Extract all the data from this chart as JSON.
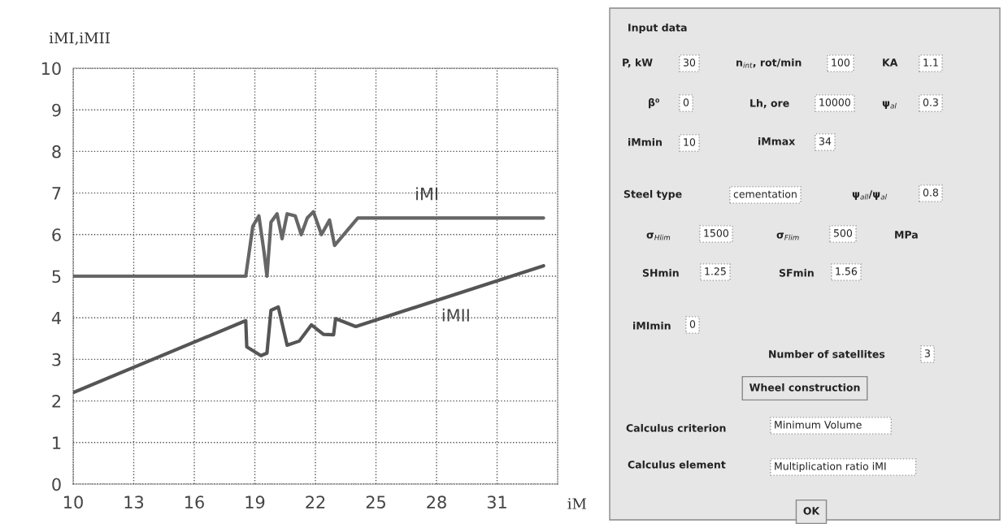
{
  "chart_data": [
    {
      "type": "line",
      "xlabel": "iM",
      "ylabel": "iMI,iMII",
      "xlim": [
        10,
        34
      ],
      "xticks": [
        10,
        13,
        16,
        19,
        22,
        25,
        28,
        31
      ],
      "ylim": [
        0,
        10
      ],
      "yticks": [
        0,
        1,
        2,
        3,
        4,
        5,
        6,
        7,
        8,
        9,
        10
      ],
      "grid": true,
      "legend": false,
      "line_style": "solid",
      "marker": "none",
      "series": [
        {
          "name": "iMI",
          "color": "#666666",
          "x": [
            10,
            18.55,
            18.9,
            19.2,
            19.45,
            19.6,
            19.8,
            20.1,
            20.35,
            20.6,
            21.0,
            21.3,
            21.6,
            21.9,
            22.3,
            22.7,
            22.95,
            24.1,
            33.3
          ],
          "values": [
            5.0,
            5.0,
            6.2,
            6.45,
            5.6,
            5.0,
            6.3,
            6.5,
            5.9,
            6.5,
            6.45,
            6.0,
            6.4,
            6.55,
            6.0,
            6.35,
            5.74,
            6.4,
            6.4
          ]
        },
        {
          "name": "iMII",
          "color": "#555555",
          "x": [
            10,
            18.55,
            18.6,
            19.3,
            19.6,
            19.8,
            20.16,
            20.6,
            21.2,
            21.8,
            22.4,
            22.9,
            23.0,
            24.0,
            33.3
          ],
          "values": [
            2.2,
            3.93,
            3.3,
            3.09,
            3.15,
            4.18,
            4.26,
            3.34,
            3.44,
            3.83,
            3.6,
            3.59,
            3.98,
            3.79,
            5.25
          ]
        }
      ]
    },
    {
      "type": "other",
      "annotations": [
        "Input data",
        "P, kW",
        "30",
        "n$_{int}$, rot/min",
        "100",
        "KA",
        "1.1",
        "β⁰",
        "0",
        "Lh, ore",
        "10000",
        "ψ$_{al}$",
        "0.3",
        "iMmin",
        "10",
        "iMmax",
        "34",
        "Steel type",
        "cementation",
        "ψ$_{all}$/ψ$_{al}$",
        "0.8",
        "σ$_{Hlim}$",
        "1500",
        "σ$_{Flim}$",
        "500",
        "MPa",
        "SHmin",
        "1.25",
        "SFmin",
        "1.56",
        "iMImin",
        "0",
        "Number of satellites",
        "3",
        "Wheel construction",
        "Calculus criterion",
        "Minimum Volume",
        "Calculus element",
        "Multiplication ratio iMI",
        "OK"
      ]
    }
  ]
}
